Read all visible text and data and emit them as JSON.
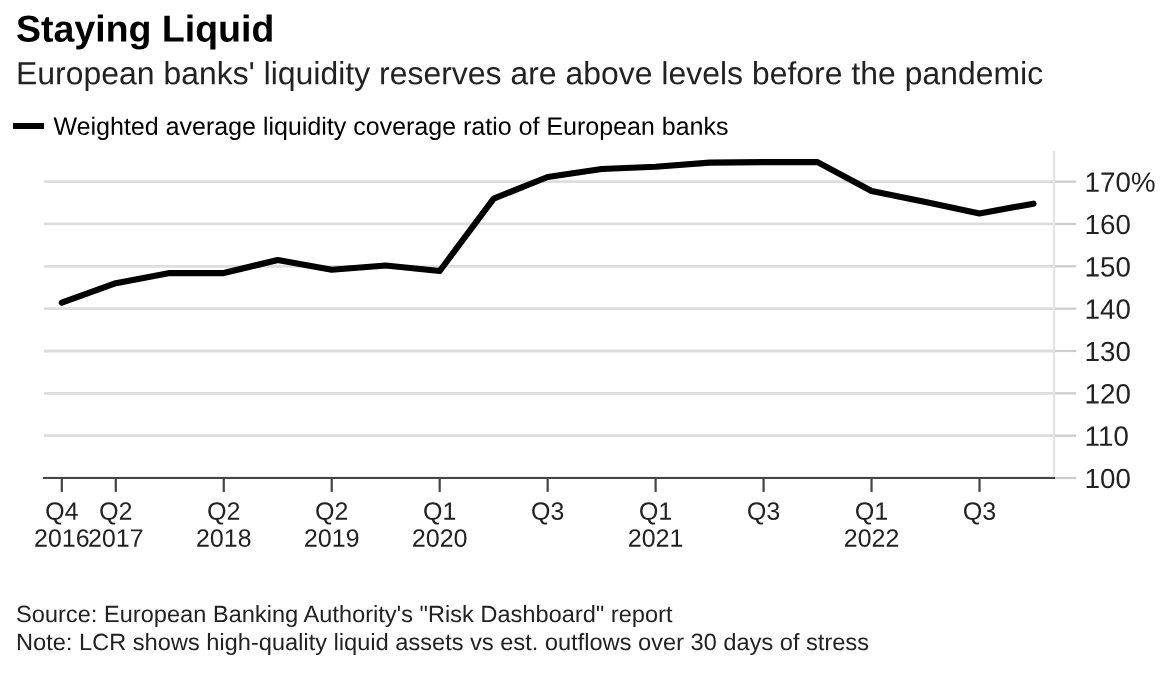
{
  "chart_data": {
    "type": "line",
    "title": "Staying Liquid",
    "subtitle": "European banks' liquidity reserves are above levels before the pandemic",
    "categories": [
      "Q4\n2016",
      "Q2\n2017",
      null,
      "Q2\n2018",
      null,
      "Q2\n2019",
      null,
      "Q1\n2020",
      null,
      "Q3",
      null,
      "Q1\n2021",
      null,
      "Q3",
      null,
      "Q1\n2022",
      null,
      "Q3",
      null
    ],
    "series": [
      {
        "name": "Weighted average liquidity coverage ratio of European banks",
        "color": "#000000",
        "values": [
          141.4,
          146,
          148.4,
          148.4,
          151.5,
          149.2,
          150.2,
          148.9,
          166,
          171.1,
          173,
          173.5,
          174.5,
          174.6,
          174.6,
          167.8,
          165.2,
          162.5,
          164.8
        ]
      }
    ],
    "ylim": [
      100,
      177
    ],
    "yticks": [
      100,
      110,
      120,
      130,
      140,
      150,
      160,
      {
        "value": 170,
        "label": "170%"
      }
    ],
    "grid": "y",
    "legend": "top left",
    "marker": "none",
    "line_style": "solid",
    "annotations": [
      "Source: European Banking Authority's \"Risk Dashboard\" report",
      "Note: LCR shows high-quality liquid assets vs est. outflows over 30 days of stress"
    ]
  }
}
